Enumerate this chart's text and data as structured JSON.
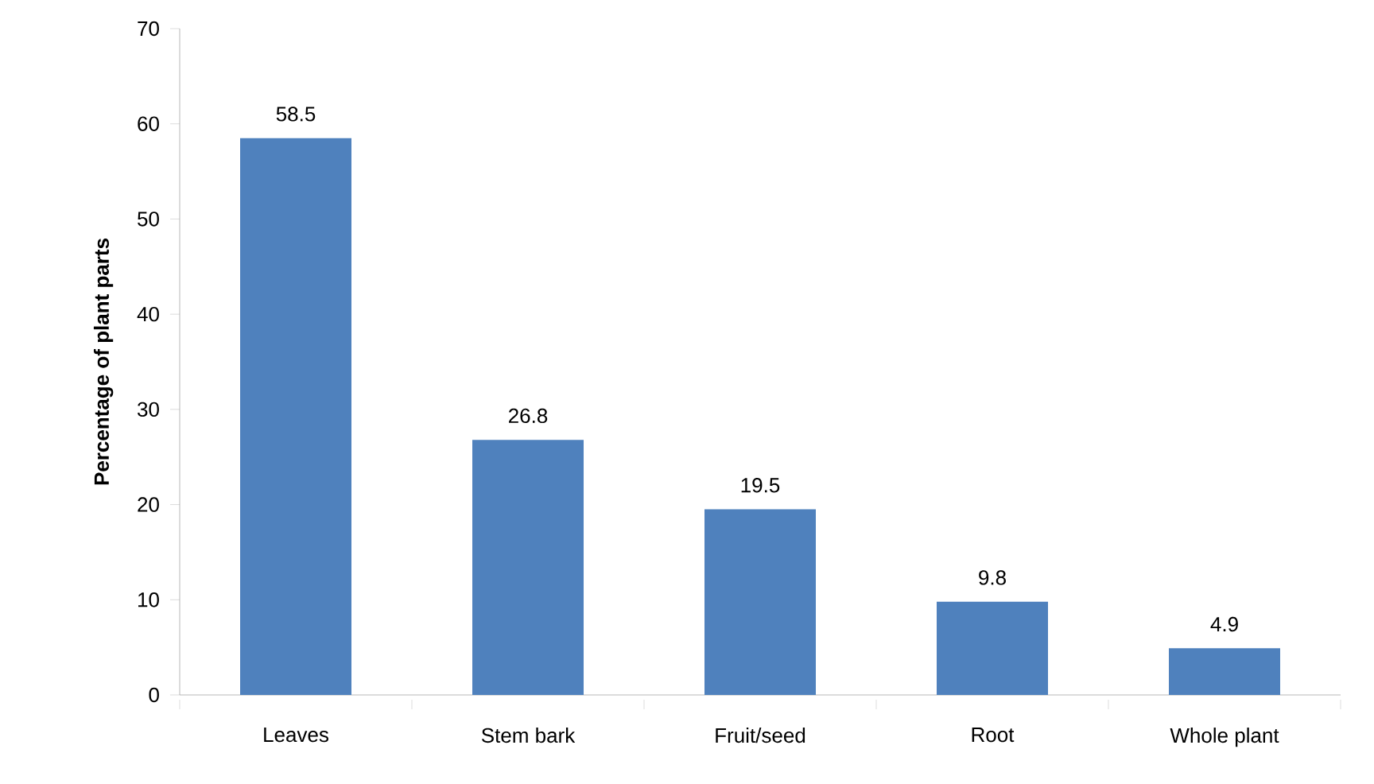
{
  "chart_data": {
    "type": "bar",
    "ylabel": "Percentage of plant parts",
    "categories": [
      "Leaves",
      "Stem bark",
      "Fruit/seed",
      "Root",
      "Whole plant"
    ],
    "values": [
      58.5,
      26.8,
      19.5,
      9.8,
      4.9
    ],
    "color": "#4f81bd",
    "ylim": [
      0,
      70
    ],
    "yticks": [
      0,
      10,
      20,
      30,
      40,
      50,
      60,
      70
    ],
    "data_labels": true,
    "grid": false
  }
}
